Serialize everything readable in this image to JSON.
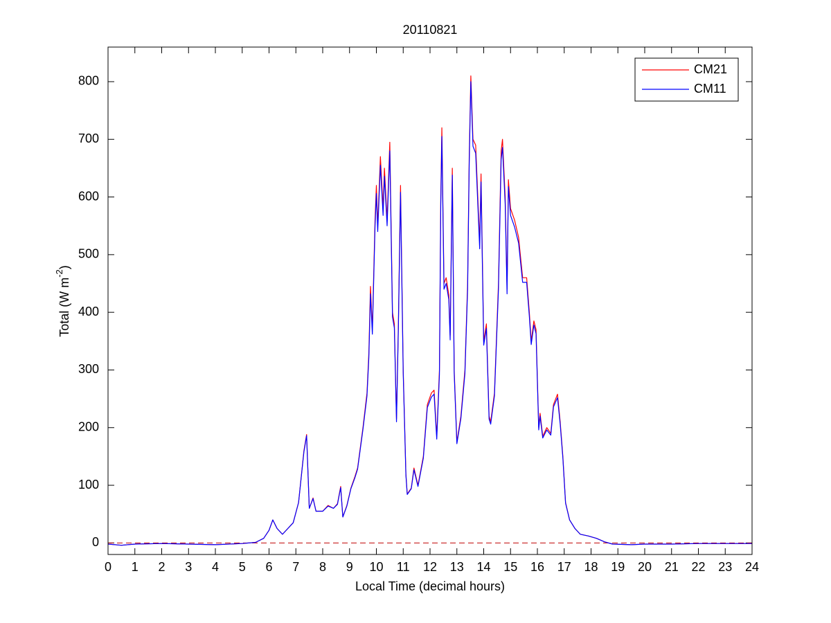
{
  "chart_data": {
    "type": "line",
    "title": "20110821",
    "xlabel": "Local Time (decimal hours)",
    "ylabel": {
      "text": "Total (W m",
      "sup": "-2",
      "end": ")"
    },
    "x": [
      0,
      0.5,
      1,
      2,
      3,
      4,
      5,
      5.5,
      5.8,
      6.0,
      6.14,
      6.3,
      6.5,
      6.7,
      6.9,
      7.1,
      7.3,
      7.4,
      7.5,
      7.64,
      7.75,
      8.0,
      8.2,
      8.4,
      8.55,
      8.67,
      8.75,
      8.9,
      9.05,
      9.2,
      9.3,
      9.5,
      9.65,
      9.72,
      9.78,
      9.85,
      9.95,
      10.0,
      10.05,
      10.15,
      10.25,
      10.3,
      10.4,
      10.5,
      10.6,
      10.67,
      10.75,
      10.82,
      10.9,
      11.0,
      11.1,
      11.15,
      11.3,
      11.4,
      11.55,
      11.75,
      11.9,
      12.05,
      12.15,
      12.25,
      12.35,
      12.4,
      12.44,
      12.52,
      12.6,
      12.7,
      12.75,
      12.83,
      12.9,
      13.0,
      13.15,
      13.3,
      13.4,
      13.46,
      13.52,
      13.6,
      13.7,
      13.78,
      13.85,
      13.9,
      14.0,
      14.1,
      14.2,
      14.26,
      14.4,
      14.55,
      14.65,
      14.7,
      14.8,
      14.87,
      14.92,
      15.0,
      15.15,
      15.3,
      15.45,
      15.6,
      15.7,
      15.77,
      15.87,
      15.95,
      16.05,
      16.1,
      16.2,
      16.35,
      16.5,
      16.6,
      16.75,
      16.85,
      16.95,
      17.05,
      17.2,
      17.4,
      17.6,
      17.9,
      18.2,
      18.5,
      18.8,
      19.5,
      20,
      21,
      22,
      23,
      24
    ],
    "series": [
      {
        "name": "CM21",
        "color": "#ff0000",
        "values": [
          -2,
          -4,
          -2,
          -1,
          -2,
          -3,
          -1,
          1,
          8,
          22,
          40,
          25,
          15,
          25,
          35,
          70,
          160,
          188,
          60,
          78,
          55,
          55,
          65,
          60,
          68,
          98,
          45,
          65,
          95,
          115,
          130,
          200,
          260,
          330,
          445,
          370,
          560,
          620,
          550,
          670,
          580,
          650,
          560,
          695,
          400,
          380,
          215,
          380,
          620,
          300,
          120,
          85,
          95,
          130,
          100,
          150,
          240,
          260,
          265,
          185,
          300,
          600,
          720,
          450,
          460,
          430,
          360,
          650,
          300,
          175,
          220,
          300,
          450,
          670,
          810,
          700,
          690,
          600,
          520,
          640,
          350,
          380,
          220,
          210,
          260,
          450,
          680,
          700,
          600,
          440,
          630,
          580,
          560,
          530,
          460,
          460,
          400,
          350,
          385,
          370,
          200,
          225,
          185,
          200,
          190,
          240,
          258,
          210,
          150,
          70,
          40,
          25,
          15,
          12,
          8,
          2,
          -2,
          -3,
          -2,
          -2,
          -1,
          -1,
          -1
        ]
      },
      {
        "name": "CM11",
        "color": "#0000ff",
        "values": [
          -2,
          -4,
          -2,
          -1,
          -2,
          -3,
          -1,
          1,
          8,
          22,
          40,
          25,
          15,
          25,
          35,
          70,
          158,
          186,
          60,
          77,
          55,
          55,
          64,
          60,
          67,
          96,
          45,
          64,
          94,
          113,
          128,
          197,
          255,
          322,
          432,
          362,
          548,
          606,
          540,
          655,
          568,
          636,
          550,
          680,
          392,
          373,
          210,
          373,
          608,
          295,
          118,
          84,
          94,
          127,
          98,
          147,
          235,
          253,
          258,
          180,
          292,
          588,
          705,
          440,
          450,
          422,
          352,
          638,
          294,
          172,
          216,
          294,
          440,
          658,
          800,
          688,
          676,
          588,
          510,
          626,
          343,
          372,
          215,
          206,
          255,
          440,
          665,
          686,
          588,
          432,
          618,
          568,
          548,
          520,
          452,
          452,
          393,
          344,
          378,
          363,
          196,
          220,
          182,
          196,
          187,
          236,
          252,
          206,
          147,
          69,
          40,
          25,
          15,
          12,
          8,
          2,
          -2,
          -3,
          -2,
          -2,
          -1,
          -1,
          -1
        ]
      }
    ],
    "hline": {
      "value": 0,
      "color": "#c00000"
    },
    "xlim": [
      0,
      24
    ],
    "xticks": [
      0,
      1,
      2,
      3,
      4,
      5,
      6,
      7,
      8,
      9,
      10,
      11,
      12,
      13,
      14,
      15,
      16,
      17,
      18,
      19,
      20,
      21,
      22,
      23,
      24
    ],
    "ylim": [
      -20,
      860
    ],
    "yticks": [
      0,
      100,
      200,
      300,
      400,
      500,
      600,
      700,
      800
    ],
    "grid": false,
    "legend": "upper right"
  }
}
